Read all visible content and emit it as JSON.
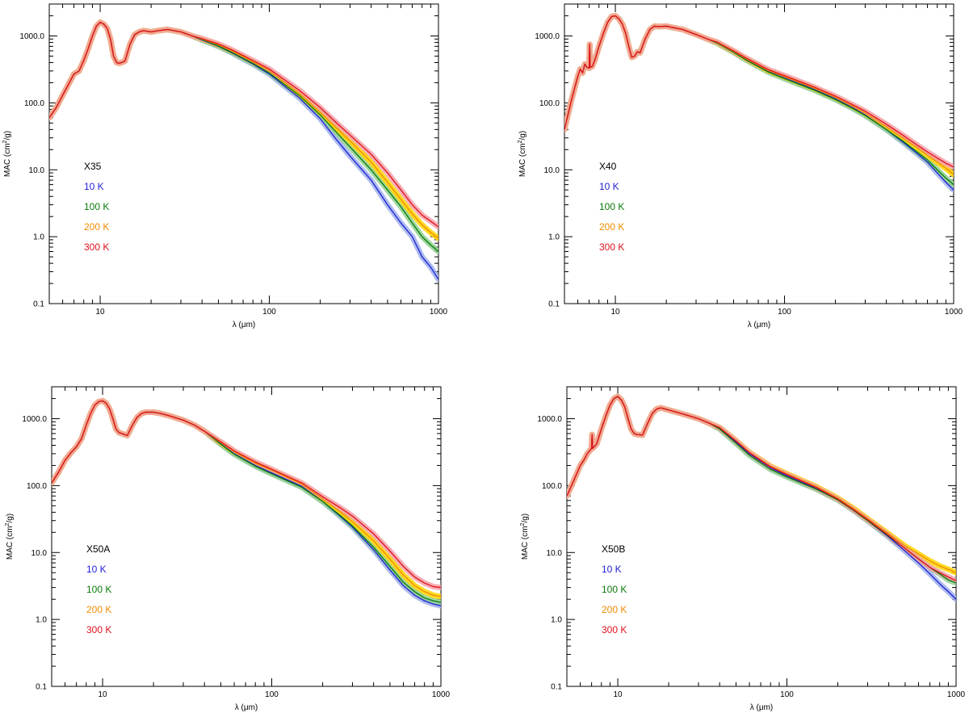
{
  "colors": {
    "10 K": "#1f1fd6",
    "100 K": "#0a7a0a",
    "200 K": "#f08c00",
    "300 K": "#e0101e",
    "band_10 K": "#9fb0ec",
    "band_100 K": "#8fd08f",
    "band_200 K": "#ffd400",
    "band_300 K": "#f4a0a8",
    "axis": "#000000"
  },
  "chart_data": [
    {
      "type": "line",
      "title": "X35",
      "xlabel": "λ (μm)",
      "ylabel": "MAC (cm²/g)",
      "ylabel_main": "MAC (cm",
      "ylabel_sup": "2",
      "ylabel_end": "/g)",
      "xscale": "log",
      "yscale": "log",
      "xlim": [
        5,
        1000
      ],
      "ylim": [
        0.1,
        3000
      ],
      "xticklabels": [
        "10",
        "100",
        "1000"
      ],
      "yticklabels": [
        "0.1",
        "1.0",
        "10.0",
        "100.0",
        "1000.0"
      ],
      "legend": {
        "placement": "left-middle",
        "labels": [
          "10 K",
          "100 K",
          "200 K",
          "300 K"
        ]
      },
      "common": {
        "x": [
          5,
          5.5,
          6,
          6.5,
          7,
          7.5,
          8,
          8.5,
          9,
          9.5,
          10,
          10.5,
          11,
          11.5,
          12,
          12.5,
          13,
          14,
          15,
          16,
          17,
          18,
          20,
          22,
          25,
          30,
          35
        ],
        "y": [
          60,
          85,
          130,
          190,
          270,
          300,
          430,
          650,
          1000,
          1400,
          1600,
          1500,
          1300,
          900,
          500,
          400,
          390,
          420,
          750,
          1050,
          1150,
          1200,
          1150,
          1200,
          1250,
          1150,
          1000
        ]
      },
      "series": [
        {
          "name": "10 K",
          "x": [
            35,
            40,
            50,
            60,
            80,
            100,
            150,
            200,
            250,
            300,
            400,
            500,
            600,
            700,
            800,
            900,
            1000
          ],
          "y": [
            1000,
            870,
            700,
            560,
            380,
            270,
            120,
            58,
            28,
            16,
            7,
            3,
            1.6,
            1.0,
            0.5,
            0.35,
            0.23
          ]
        },
        {
          "name": "100 K",
          "x": [
            35,
            40,
            50,
            60,
            80,
            100,
            150,
            200,
            250,
            300,
            400,
            500,
            600,
            700,
            800,
            900,
            1000
          ],
          "y": [
            1000,
            880,
            710,
            570,
            390,
            280,
            130,
            66,
            36,
            22,
            10,
            5,
            2.8,
            1.6,
            1.0,
            0.75,
            0.6
          ]
        },
        {
          "name": "200 K",
          "x": [
            35,
            40,
            50,
            60,
            80,
            100,
            150,
            200,
            250,
            300,
            400,
            500,
            600,
            700,
            800,
            900,
            1000
          ],
          "y": [
            1000,
            900,
            740,
            600,
            410,
            300,
            140,
            72,
            42,
            27,
            13,
            6.5,
            3.6,
            2.2,
            1.5,
            1.15,
            0.95
          ]
        },
        {
          "name": "300 K",
          "x": [
            35,
            40,
            50,
            60,
            80,
            100,
            150,
            200,
            250,
            300,
            400,
            500,
            600,
            700,
            800,
            900,
            1000
          ],
          "y": [
            1000,
            910,
            760,
            620,
            430,
            320,
            155,
            85,
            50,
            33,
            17,
            9,
            5,
            3,
            2.1,
            1.7,
            1.4
          ]
        }
      ]
    },
    {
      "type": "line",
      "title": "X40",
      "xlabel": "λ (μm)",
      "ylabel": "MAC (cm²/g)",
      "ylabel_main": "MAC (cm",
      "ylabel_sup": "2",
      "ylabel_end": "/g)",
      "xscale": "log",
      "yscale": "log",
      "xlim": [
        5,
        1000
      ],
      "ylim": [
        0.1,
        3000
      ],
      "xticklabels": [
        "10",
        "100",
        "1000"
      ],
      "yticklabels": [
        "0.1",
        "1.0",
        "10.0",
        "100.0",
        "1000.0"
      ],
      "legend": {
        "placement": "left-middle",
        "labels": [
          "10 K",
          "100 K",
          "200 K",
          "300 K"
        ]
      },
      "common": {
        "x": [
          5,
          5.5,
          6,
          6.2,
          6.4,
          6.6,
          6.8,
          7,
          7.05,
          7.1,
          7.3,
          7.6,
          8,
          8.5,
          9,
          9.5,
          10,
          10.5,
          11,
          11.5,
          12,
          12.5,
          13,
          13.5,
          14,
          15,
          16,
          17,
          18,
          20,
          25,
          30,
          35
        ],
        "y": [
          40,
          110,
          250,
          320,
          280,
          380,
          340,
          330,
          750,
          340,
          350,
          450,
          700,
          1100,
          1600,
          1950,
          2000,
          1800,
          1500,
          1100,
          700,
          480,
          500,
          580,
          560,
          900,
          1250,
          1400,
          1380,
          1400,
          1250,
          1050,
          900
        ]
      },
      "series": [
        {
          "name": "10 K",
          "x": [
            35,
            40,
            50,
            60,
            80,
            100,
            150,
            200,
            250,
            300,
            400,
            500,
            600,
            700,
            800,
            900,
            1000
          ],
          "y": [
            900,
            790,
            580,
            440,
            300,
            240,
            160,
            115,
            86,
            66,
            40,
            26,
            18,
            13,
            9,
            6.5,
            5.0
          ]
        },
        {
          "name": "100 K",
          "x": [
            35,
            40,
            50,
            60,
            80,
            100,
            150,
            200,
            250,
            300,
            400,
            500,
            600,
            700,
            800,
            900,
            1000
          ],
          "y": [
            900,
            780,
            570,
            430,
            290,
            230,
            155,
            112,
            84,
            65,
            40,
            27,
            19,
            14,
            10,
            7.5,
            6.0
          ]
        },
        {
          "name": "200 K",
          "x": [
            35,
            40,
            50,
            60,
            80,
            100,
            150,
            200,
            250,
            300,
            400,
            500,
            600,
            700,
            800,
            900,
            1000
          ],
          "y": [
            900,
            800,
            590,
            450,
            305,
            245,
            165,
            120,
            90,
            70,
            44,
            30,
            22,
            16.5,
            13,
            10.5,
            8.5
          ]
        },
        {
          "name": "300 K",
          "x": [
            35,
            40,
            50,
            60,
            80,
            100,
            150,
            200,
            250,
            300,
            400,
            500,
            600,
            700,
            800,
            900,
            1000
          ],
          "y": [
            900,
            810,
            600,
            460,
            315,
            255,
            172,
            126,
            95,
            75,
            48,
            33,
            24,
            18.5,
            15,
            12.5,
            11
          ]
        }
      ]
    },
    {
      "type": "line",
      "title": "X50A",
      "xlabel": "λ (μm)",
      "ylabel": "MAC (cm²/g)",
      "ylabel_main": "MAC (cm",
      "ylabel_sup": "2",
      "ylabel_end": "/g)",
      "xscale": "log",
      "yscale": "log",
      "xlim": [
        5,
        1000
      ],
      "ylim": [
        0.1,
        3000
      ],
      "xticklabels": [
        "10",
        "100",
        "1000"
      ],
      "yticklabels": [
        "0.1",
        "1.0",
        "10.0",
        "100.0",
        "1000.0"
      ],
      "legend": {
        "placement": "left-middle",
        "labels": [
          "10 K",
          "100 K",
          "200 K",
          "300 K"
        ]
      },
      "common": {
        "x": [
          5,
          5.5,
          6,
          6.5,
          7,
          7.5,
          8,
          8.5,
          9,
          9.5,
          10,
          10.5,
          11,
          11.5,
          12,
          12.5,
          13,
          14,
          15,
          16,
          17,
          18,
          20,
          22,
          25,
          30,
          35,
          40
        ],
        "y": [
          110,
          160,
          240,
          310,
          380,
          500,
          800,
          1200,
          1600,
          1800,
          1850,
          1700,
          1400,
          1000,
          700,
          620,
          600,
          560,
          800,
          1050,
          1200,
          1250,
          1250,
          1200,
          1100,
          950,
          800,
          650
        ]
      },
      "series": [
        {
          "name": "10 K",
          "x": [
            40,
            50,
            60,
            80,
            100,
            150,
            200,
            250,
            300,
            400,
            500,
            600,
            700,
            800,
            900,
            1000
          ],
          "y": [
            650,
            420,
            300,
            200,
            155,
            98,
            58,
            36,
            24,
            11,
            5.5,
            3.2,
            2.3,
            1.9,
            1.7,
            1.6
          ]
        },
        {
          "name": "100 K",
          "x": [
            40,
            50,
            60,
            80,
            100,
            150,
            200,
            250,
            300,
            400,
            500,
            600,
            700,
            800,
            900,
            1000
          ],
          "y": [
            650,
            415,
            295,
            195,
            150,
            95,
            58,
            37,
            25,
            12,
            6.2,
            3.6,
            2.6,
            2.1,
            1.9,
            1.8
          ]
        },
        {
          "name": "200 K",
          "x": [
            40,
            50,
            60,
            80,
            100,
            150,
            200,
            250,
            300,
            400,
            500,
            600,
            700,
            800,
            900,
            1000
          ],
          "y": [
            650,
            440,
            320,
            215,
            170,
            105,
            63,
            42,
            29,
            15,
            8,
            4.6,
            3.2,
            2.6,
            2.3,
            2.2
          ]
        },
        {
          "name": "300 K",
          "x": [
            40,
            50,
            60,
            80,
            100,
            150,
            200,
            250,
            300,
            400,
            500,
            600,
            700,
            800,
            900,
            1000
          ],
          "y": [
            650,
            450,
            330,
            225,
            175,
            110,
            68,
            48,
            35,
            19,
            10.5,
            6.2,
            4.3,
            3.5,
            3.1,
            3.0
          ]
        }
      ]
    },
    {
      "type": "line",
      "title": "X50B",
      "xlabel": "λ (μm)",
      "ylabel": "MAC (cm²/g)",
      "ylabel_main": "MAC (cm",
      "ylabel_sup": "2",
      "ylabel_end": "/g)",
      "xscale": "log",
      "yscale": "log",
      "xlim": [
        5,
        1000
      ],
      "ylim": [
        0.1,
        3000
      ],
      "xticklabels": [
        "10",
        "100",
        "1000"
      ],
      "yticklabels": [
        "0.1",
        "1.0",
        "10.0",
        "100.0",
        "1000.0"
      ],
      "legend": {
        "placement": "left-middle",
        "labels": [
          "10 K",
          "100 K",
          "200 K",
          "300 K"
        ]
      },
      "common": {
        "x": [
          5,
          5.5,
          6,
          6.3,
          6.6,
          7,
          7.05,
          7.1,
          7.5,
          8,
          8.5,
          9,
          9.5,
          10,
          10.5,
          11,
          11.5,
          12,
          12.5,
          13,
          14,
          15,
          16,
          17,
          18,
          20,
          25,
          30,
          35
        ],
        "y": [
          70,
          120,
          200,
          240,
          300,
          360,
          580,
          360,
          420,
          700,
          1100,
          1600,
          2000,
          2150,
          1900,
          1500,
          1000,
          700,
          600,
          580,
          570,
          850,
          1200,
          1400,
          1450,
          1350,
          1150,
          1000,
          850
        ]
      },
      "series": [
        {
          "name": "10 K",
          "x": [
            35,
            40,
            50,
            60,
            80,
            100,
            150,
            200,
            250,
            300,
            400,
            500,
            600,
            700,
            800,
            900,
            1000
          ],
          "y": [
            850,
            720,
            450,
            300,
            185,
            140,
            90,
            62,
            42,
            30,
            17,
            10.5,
            7,
            4.8,
            3.4,
            2.6,
            2.0
          ]
        },
        {
          "name": "100 K",
          "x": [
            35,
            40,
            50,
            60,
            80,
            100,
            150,
            200,
            250,
            300,
            400,
            500,
            600,
            700,
            800,
            900,
            1000
          ],
          "y": [
            850,
            700,
            430,
            285,
            175,
            135,
            88,
            61,
            42,
            30,
            17.5,
            11.5,
            8,
            6,
            4.8,
            3.9,
            3.5
          ]
        },
        {
          "name": "200 K",
          "x": [
            35,
            40,
            50,
            60,
            80,
            100,
            150,
            200,
            250,
            300,
            400,
            500,
            600,
            700,
            800,
            900,
            1000
          ],
          "y": [
            850,
            740,
            470,
            315,
            195,
            150,
            96,
            65,
            45,
            32,
            19,
            12.5,
            9.5,
            7.5,
            6.3,
            5.6,
            5.0
          ]
        },
        {
          "name": "300 K",
          "x": [
            35,
            40,
            50,
            60,
            80,
            100,
            150,
            200,
            250,
            300,
            400,
            500,
            600,
            700,
            800,
            900,
            1000
          ],
          "y": [
            850,
            735,
            465,
            310,
            190,
            146,
            93,
            63,
            43,
            31,
            18,
            11.5,
            8,
            6,
            5,
            4.3,
            3.8
          ]
        }
      ]
    }
  ]
}
